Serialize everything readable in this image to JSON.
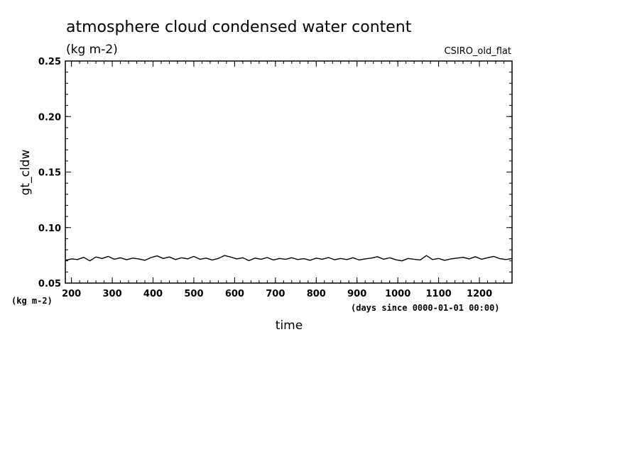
{
  "chart_data": {
    "type": "line",
    "title": "atmosphere cloud condensed water content",
    "units_label": "(kg m-2)",
    "dataset_label": "CSIRO_old_flat",
    "xlabel": "time",
    "x_units": "(days since 0000-01-01 00:00)",
    "ylabel": "gt_cldw",
    "y_units": "(kg m-2)",
    "xlim": [
      185,
      1280
    ],
    "ylim": [
      0.05,
      0.25
    ],
    "x_ticks": [
      200,
      300,
      400,
      500,
      600,
      700,
      800,
      900,
      1000,
      1100,
      1200
    ],
    "y_ticks": [
      0.05,
      0.1,
      0.15,
      0.2,
      0.25
    ],
    "y_tick_labels": [
      "0.05",
      "0.10",
      "0.15",
      "0.20",
      "0.25"
    ],
    "grid": false,
    "series": [
      {
        "name": "gt_cldw",
        "x": [
          185,
          200,
          215,
          230,
          245,
          260,
          275,
          290,
          305,
          320,
          335,
          350,
          365,
          380,
          395,
          410,
          425,
          440,
          455,
          470,
          485,
          500,
          515,
          530,
          545,
          560,
          575,
          590,
          605,
          620,
          635,
          650,
          665,
          680,
          695,
          710,
          725,
          740,
          755,
          770,
          785,
          800,
          815,
          830,
          845,
          860,
          875,
          890,
          905,
          920,
          935,
          950,
          965,
          980,
          995,
          1010,
          1025,
          1040,
          1055,
          1070,
          1085,
          1100,
          1115,
          1130,
          1145,
          1160,
          1175,
          1190,
          1205,
          1220,
          1235,
          1250,
          1265,
          1280
        ],
        "values": [
          0.0705,
          0.0718,
          0.0712,
          0.0732,
          0.07,
          0.0735,
          0.0722,
          0.074,
          0.0715,
          0.0728,
          0.071,
          0.0725,
          0.0718,
          0.0705,
          0.073,
          0.0745,
          0.0722,
          0.0735,
          0.0712,
          0.0728,
          0.0718,
          0.074,
          0.0715,
          0.0725,
          0.0708,
          0.0722,
          0.0748,
          0.0735,
          0.0718,
          0.0728,
          0.0702,
          0.0725,
          0.0715,
          0.073,
          0.0708,
          0.0722,
          0.0715,
          0.0728,
          0.0712,
          0.072,
          0.0705,
          0.0725,
          0.0715,
          0.073,
          0.071,
          0.0722,
          0.0712,
          0.0728,
          0.0708,
          0.0718,
          0.0725,
          0.0738,
          0.0715,
          0.0728,
          0.071,
          0.07,
          0.0722,
          0.0715,
          0.0708,
          0.0748,
          0.0712,
          0.0722,
          0.0705,
          0.0718,
          0.0725,
          0.0732,
          0.0718,
          0.0738,
          0.0715,
          0.0728,
          0.074,
          0.072,
          0.0712,
          0.0722
        ]
      }
    ]
  }
}
